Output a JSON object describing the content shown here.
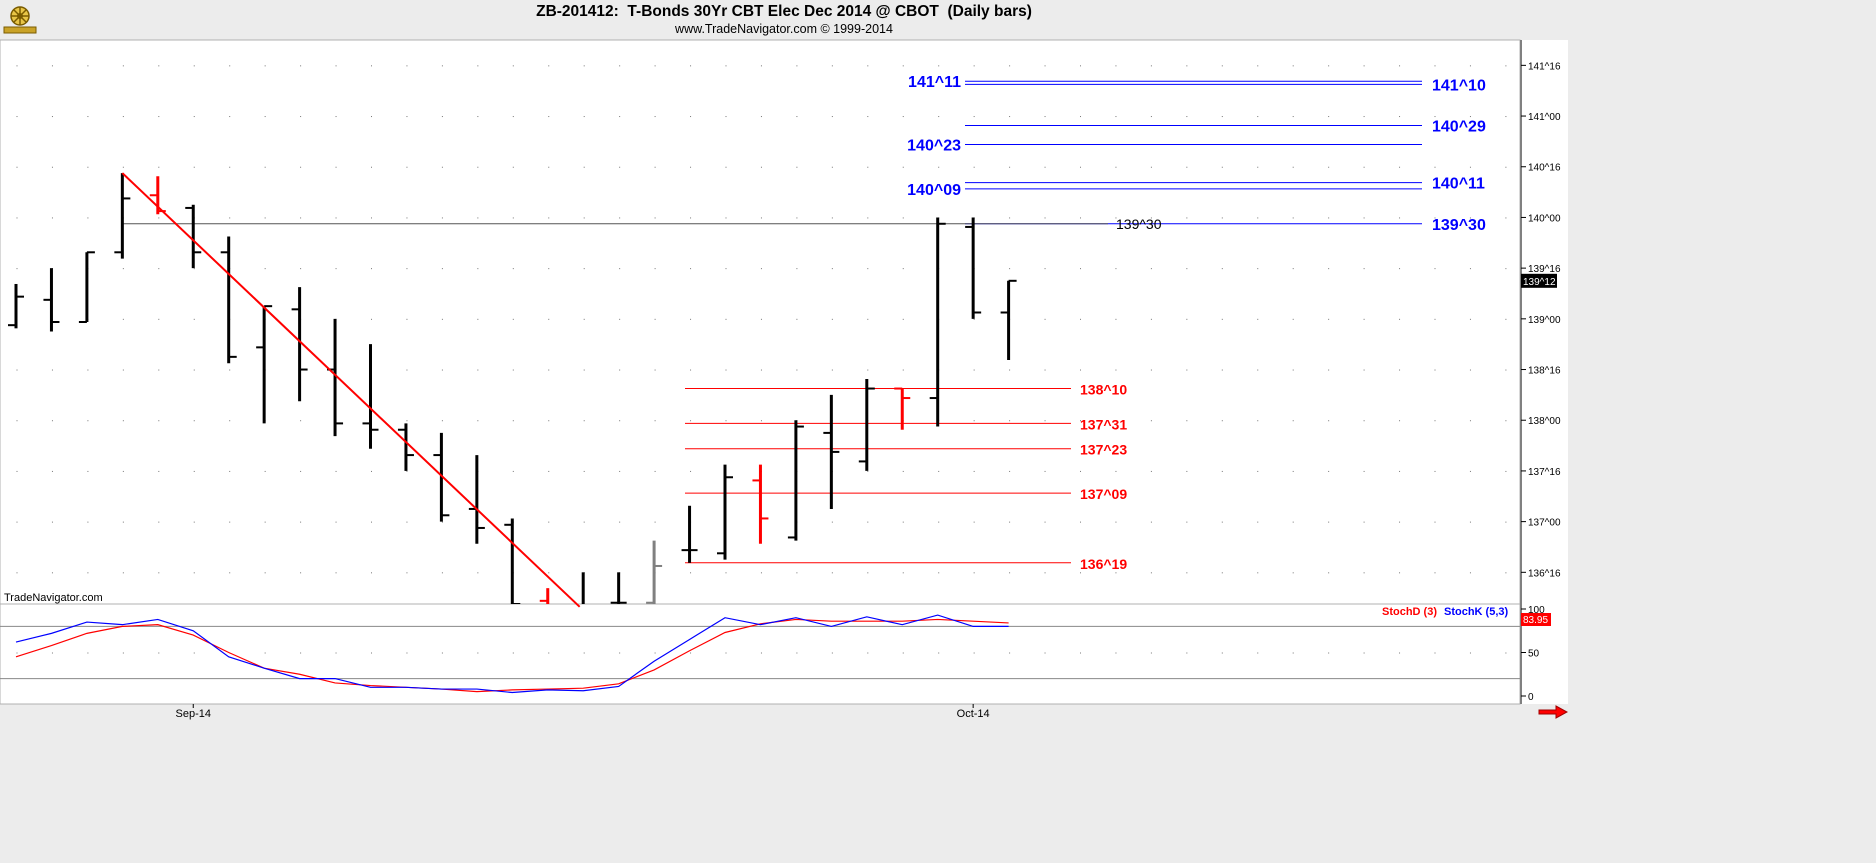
{
  "header": {
    "title": "ZB-201412:  T-Bonds 30Yr CBT Elec Dec 2014 @ CBOT  (Daily bars)",
    "subtitle": "www.TradeNavigator.com © 1999-2014"
  },
  "watermark": "TradeNavigator.com",
  "colors": {
    "background": "#ffffff",
    "frame": "#ececec",
    "bars": "#000000",
    "red": "#ff0000",
    "blue": "#0000ff",
    "gray": "#808080"
  },
  "chart_data": [
    {
      "type": "ohlc",
      "title": "",
      "price_axis": {
        "ticks": [
          "141^16",
          "141^00",
          "140^16",
          "140^00",
          "139^16",
          "139^00",
          "138^16",
          "138^00",
          "137^16",
          "137^00",
          "136^16"
        ],
        "ylim": [
          136.1875,
          141.75
        ],
        "last_price_label": "139^12",
        "last_price": 139.375
      },
      "x_axis": {
        "ticks": [
          {
            "label": "Sep-14",
            "index": 5
          },
          {
            "label": "Oct-14",
            "index": 27
          }
        ]
      },
      "bars": [
        {
          "i": 0,
          "o": 138.9375,
          "h": 139.34375,
          "l": 138.90625,
          "c": 139.21875,
          "color": "black"
        },
        {
          "i": 1,
          "o": 139.1875,
          "h": 139.5,
          "l": 138.875,
          "c": 138.96875,
          "color": "black"
        },
        {
          "i": 2,
          "o": 138.96875,
          "h": 139.65625,
          "l": 138.96875,
          "c": 139.65625,
          "color": "black"
        },
        {
          "i": 3,
          "o": 139.65625,
          "h": 140.4375,
          "l": 139.59375,
          "c": 140.1875,
          "color": "black"
        },
        {
          "i": 4,
          "o": 140.21875,
          "h": 140.40625,
          "l": 140.03125,
          "c": 140.0625,
          "color": "red"
        },
        {
          "i": 5,
          "o": 140.09375,
          "h": 140.125,
          "l": 139.5,
          "c": 139.65625,
          "color": "black"
        },
        {
          "i": 6,
          "o": 139.65625,
          "h": 139.8125,
          "l": 138.5625,
          "c": 138.625,
          "color": "black"
        },
        {
          "i": 7,
          "o": 138.71875,
          "h": 139.125,
          "l": 137.96875,
          "c": 139.125,
          "color": "black"
        },
        {
          "i": 8,
          "o": 139.09375,
          "h": 139.3125,
          "l": 138.1875,
          "c": 138.5,
          "color": "black"
        },
        {
          "i": 9,
          "o": 138.5,
          "h": 139.0,
          "l": 137.84375,
          "c": 137.96875,
          "color": "black"
        },
        {
          "i": 10,
          "o": 137.96875,
          "h": 138.75,
          "l": 137.71875,
          "c": 137.90625,
          "color": "black"
        },
        {
          "i": 11,
          "o": 137.90625,
          "h": 137.96875,
          "l": 137.5,
          "c": 137.65625,
          "color": "black"
        },
        {
          "i": 12,
          "o": 137.65625,
          "h": 137.875,
          "l": 137.0,
          "c": 137.0625,
          "color": "black"
        },
        {
          "i": 13,
          "o": 137.125,
          "h": 137.65625,
          "l": 136.78125,
          "c": 136.9375,
          "color": "black"
        },
        {
          "i": 14,
          "o": 136.96875,
          "h": 137.03125,
          "l": 136.0,
          "c": 136.1875,
          "color": "black"
        },
        {
          "i": 15,
          "o": 136.21875,
          "h": 136.34375,
          "l": 136.0,
          "c": 136.1,
          "color": "red"
        },
        {
          "i": 16,
          "o": 136.1,
          "h": 136.5,
          "l": 136.0,
          "c": 136.1,
          "color": "black"
        },
        {
          "i": 17,
          "o": 136.2,
          "h": 136.5,
          "l": 136.0,
          "c": 136.2,
          "color": "black"
        },
        {
          "i": 18,
          "o": 136.2,
          "h": 136.8125,
          "l": 136.0,
          "c": 136.5625,
          "color": "gray"
        },
        {
          "i": 19,
          "o": 136.71875,
          "h": 137.15625,
          "l": 136.59375,
          "c": 136.71875,
          "color": "black"
        },
        {
          "i": 20,
          "o": 136.6875,
          "h": 137.5625,
          "l": 136.625,
          "c": 137.4375,
          "color": "black"
        },
        {
          "i": 21,
          "o": 137.40625,
          "h": 137.5625,
          "l": 136.78125,
          "c": 137.03125,
          "color": "red"
        },
        {
          "i": 22,
          "o": 136.84375,
          "h": 138.0,
          "l": 136.8125,
          "c": 137.9375,
          "color": "black"
        },
        {
          "i": 23,
          "o": 137.875,
          "h": 138.25,
          "l": 137.125,
          "c": 137.6875,
          "color": "black"
        },
        {
          "i": 24,
          "o": 137.59375,
          "h": 138.40625,
          "l": 137.5,
          "c": 138.3125,
          "color": "black"
        },
        {
          "i": 25,
          "o": 138.3125,
          "h": 138.3125,
          "l": 137.90625,
          "c": 138.21875,
          "color": "red"
        },
        {
          "i": 26,
          "o": 138.21875,
          "h": 140.0,
          "l": 137.9375,
          "c": 139.9375,
          "color": "black"
        },
        {
          "i": 27,
          "o": 139.90625,
          "h": 140.0,
          "l": 139.0,
          "c": 139.0625,
          "color": "black"
        },
        {
          "i": 28,
          "o": 139.0625,
          "h": 139.375,
          "l": 138.59375,
          "c": 139.375,
          "color": "black"
        }
      ],
      "trendline": {
        "from": {
          "i": 3,
          "price": 140.4375
        },
        "to": {
          "i": 15.9,
          "price": 136.16
        },
        "color": "red"
      },
      "resistance_line": {
        "from_i": 3,
        "to_i": 28,
        "price": 139.9375,
        "label": "139^30"
      },
      "fib_levels_blue_left": [
        {
          "label": "141^11",
          "price": 141.34375
        },
        {
          "label": "140^23",
          "price": 140.71875
        },
        {
          "label": "140^09",
          "price": 140.28125
        }
      ],
      "fib_levels_blue_right": [
        {
          "label": "141^10",
          "price": 141.3125
        },
        {
          "label": "140^29",
          "price": 140.90625
        },
        {
          "label": "140^11",
          "price": 140.34375
        },
        {
          "label": "139^30",
          "price": 139.9375
        }
      ],
      "fib_levels_red": [
        {
          "label": "138^10",
          "price": 138.3125
        },
        {
          "label": "137^31",
          "price": 137.96875
        },
        {
          "label": "137^23",
          "price": 137.71875
        },
        {
          "label": "137^09",
          "price": 137.28125
        },
        {
          "label": "136^19",
          "price": 136.59375
        }
      ]
    },
    {
      "type": "line",
      "title": "",
      "y_axis": {
        "ticks": [
          "100",
          "50",
          "0"
        ],
        "ylim": [
          0,
          100
        ]
      },
      "reference_lines": [
        80,
        20
      ],
      "legend": [
        "StochD (3)",
        "StochK (5,3)"
      ],
      "last_value_label": "83.95",
      "series": [
        {
          "name": "StochD (3)",
          "color": "red",
          "values": [
            45,
            58,
            72,
            80,
            82,
            70,
            50,
            32,
            25,
            15,
            12,
            10,
            8,
            5,
            7,
            8,
            9,
            14,
            30,
            52,
            73,
            83,
            88,
            86,
            86,
            86,
            88,
            86,
            84
          ]
        },
        {
          "name": "StochK (5,3)",
          "color": "blue",
          "values": [
            62,
            72,
            85,
            82,
            88,
            75,
            45,
            32,
            20,
            20,
            10,
            10,
            8,
            8,
            4,
            7,
            6,
            11,
            40,
            65,
            90,
            82,
            90,
            80,
            91,
            82,
            93,
            80,
            80
          ]
        }
      ]
    }
  ]
}
